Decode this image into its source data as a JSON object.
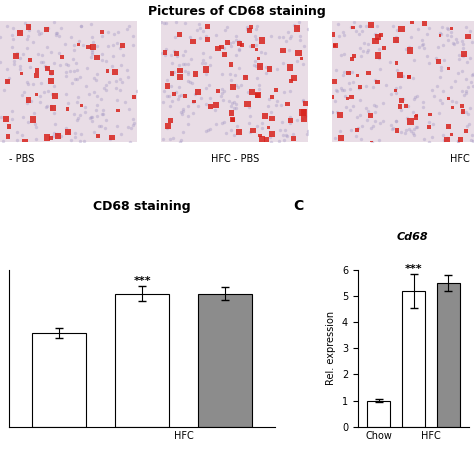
{
  "header": {
    "title": "Pictures of CD68 staining"
  },
  "image_labels": [
    "- PBS",
    "HFC - PBS",
    "HFC"
  ],
  "chart_data": [
    {
      "type": "bar",
      "title": "CD68 staining",
      "x": [
        0,
        1,
        2
      ],
      "values": [
        3.6,
        5.1,
        5.1
      ],
      "errors": [
        0.2,
        0.3,
        0.25
      ],
      "colors": [
        "#ffffff",
        "#ffffff",
        "#8c8c8c"
      ],
      "xlim": [
        -0.6,
        2.6
      ],
      "xticks": [
        {
          "value": 1.5,
          "label": "HFC"
        }
      ],
      "ylim": [
        0,
        6
      ],
      "tick_labels": "x",
      "annotations": [
        {
          "x": 1,
          "text": "***"
        }
      ]
    },
    {
      "type": "bar",
      "title": "Cd68",
      "panel": "C",
      "y_label": "Rel. expression",
      "x": [
        0,
        1,
        2
      ],
      "values": [
        1.0,
        5.2,
        5.5
      ],
      "errors": [
        0.07,
        0.65,
        0.3
      ],
      "colors": [
        "#ffffff",
        "#ffffff",
        "#8c8c8c"
      ],
      "xlim": [
        -0.6,
        2.6
      ],
      "xticks": [
        {
          "value": 0,
          "label": "Chow"
        },
        {
          "value": 1.5,
          "label": "HFC"
        }
      ],
      "ylim": [
        0,
        6
      ],
      "yticks": [
        0,
        1,
        2,
        3,
        4,
        5,
        6
      ],
      "annotations": [
        {
          "x": 1,
          "text": "***"
        }
      ]
    }
  ]
}
